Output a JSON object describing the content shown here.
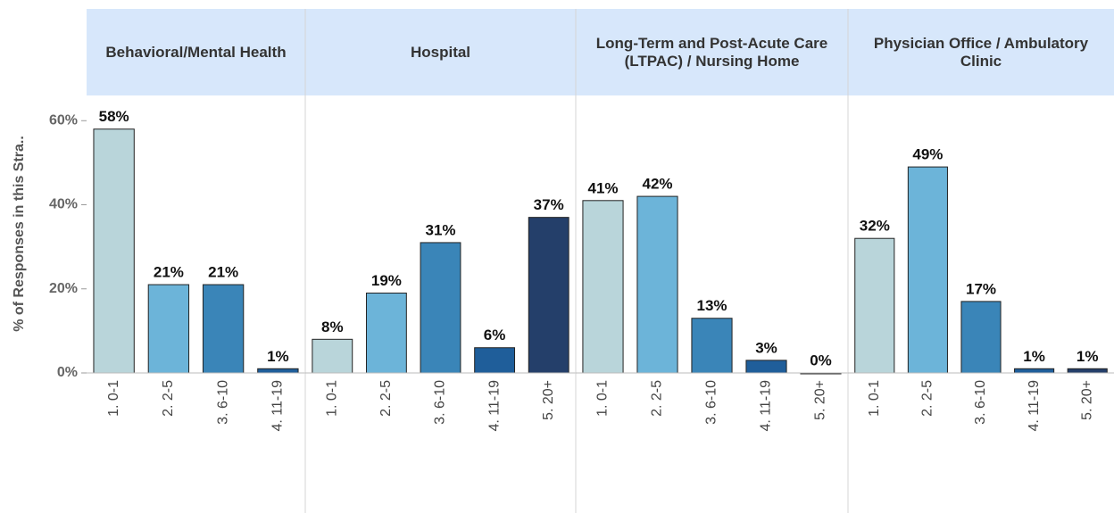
{
  "chart_data": [
    {
      "type": "bar",
      "title": "Behavioral/Mental Health",
      "ylabel": "% of Responses in this Stra..",
      "categories": [
        "1. 0-1",
        "2. 2-5",
        "3. 6-10",
        "4. 11-19"
      ],
      "values": [
        58,
        21,
        21,
        1
      ],
      "value_labels": [
        "58%",
        "21%",
        "21%",
        "1%"
      ],
      "colors": [
        "#b9d5da",
        "#6cb4d9",
        "#3a85b8",
        "#1f5e9a"
      ],
      "ylim": [
        0,
        66
      ],
      "yticks": [
        {
          "value": 0,
          "label": "0%"
        },
        {
          "value": 20,
          "label": "20%"
        },
        {
          "value": 40,
          "label": "40%"
        },
        {
          "value": 60,
          "label": "60%"
        }
      ]
    },
    {
      "type": "bar",
      "title": "Hospital",
      "categories": [
        "1. 0-1",
        "2. 2-5",
        "3. 6-10",
        "4. 11-19",
        "5. 20+"
      ],
      "values": [
        8,
        19,
        31,
        6,
        37
      ],
      "value_labels": [
        "8%",
        "19%",
        "31%",
        "6%",
        "37%"
      ],
      "colors": [
        "#b9d5da",
        "#6cb4d9",
        "#3a85b8",
        "#1f5e9a",
        "#243f6a"
      ],
      "ylim": [
        0,
        66
      ]
    },
    {
      "type": "bar",
      "title": "Long-Term and Post-Acute Care (LTPAC) / Nursing Home",
      "categories": [
        "1. 0-1",
        "2. 2-5",
        "3. 6-10",
        "4. 11-19",
        "5. 20+"
      ],
      "values": [
        41,
        42,
        13,
        3,
        0
      ],
      "value_labels": [
        "41%",
        "42%",
        "13%",
        "3%",
        "0%"
      ],
      "colors": [
        "#b9d5da",
        "#6cb4d9",
        "#3a85b8",
        "#1f5e9a",
        "#243f6a"
      ],
      "ylim": [
        0,
        66
      ]
    },
    {
      "type": "bar",
      "title": "Physician Office / Ambulatory Clinic",
      "categories": [
        "1. 0-1",
        "2. 2-5",
        "3. 6-10",
        "4. 11-19",
        "5. 20+"
      ],
      "values": [
        32,
        49,
        17,
        1,
        1
      ],
      "value_labels": [
        "32%",
        "49%",
        "17%",
        "1%",
        "1%"
      ],
      "colors": [
        "#b9d5da",
        "#6cb4d9",
        "#3a85b8",
        "#1f5e9a",
        "#243f6a"
      ],
      "ylim": [
        0,
        66
      ]
    }
  ]
}
